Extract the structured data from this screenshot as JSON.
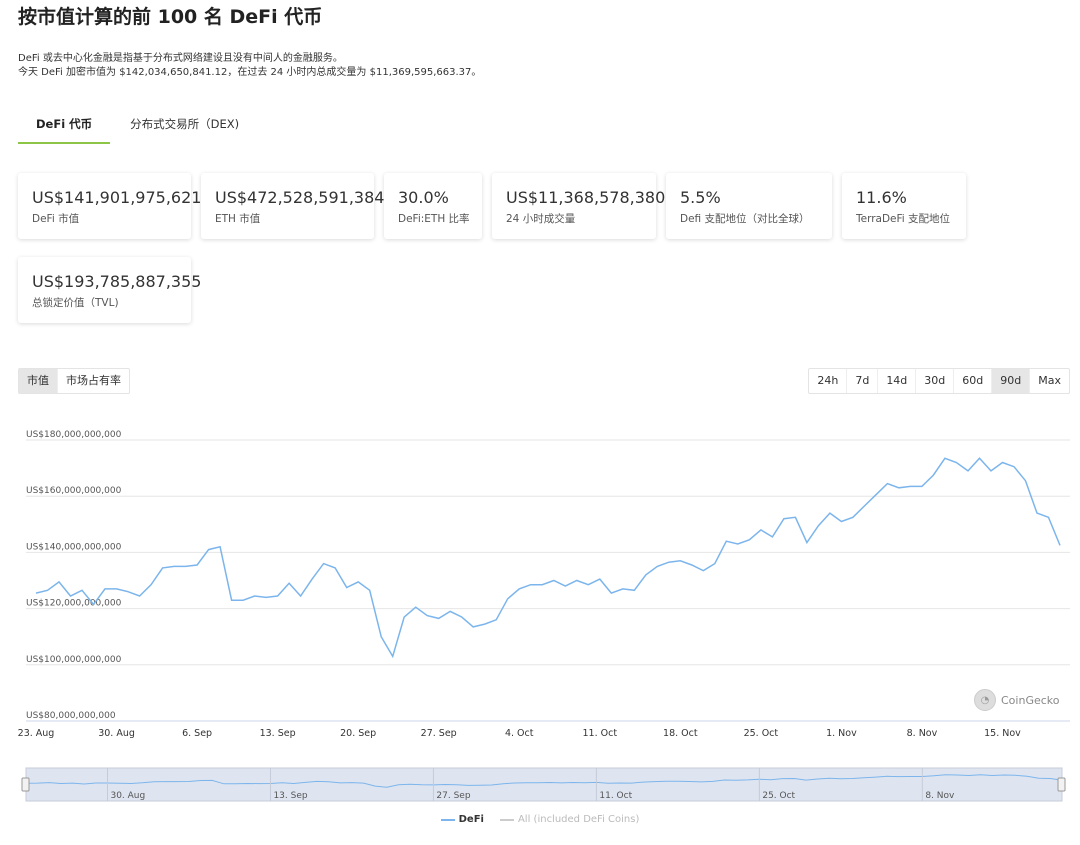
{
  "page": {
    "title": "按市值计算的前 100 名 DeFi 代币",
    "desc_line1": "DeFi 或去中心化金融是指基于分布式网络建设且没有中间人的金融服务。",
    "desc_line2": "今天 DeFi 加密市值为 $142,034,650,841.12，在过去 24 小时内总成交量为 $11,369,595,663.37。"
  },
  "tabs": [
    {
      "label": "DeFi 代币",
      "active": true
    },
    {
      "label": "分布式交易所（DEX)",
      "active": false
    }
  ],
  "stats": [
    {
      "value": "US$141,901,975,621",
      "label": "DeFi 市值"
    },
    {
      "value": "US$472,528,591,384",
      "label": "ETH 市值"
    },
    {
      "value": "30.0%",
      "label": "DeFi:ETH 比率"
    },
    {
      "value": "US$11,368,578,380",
      "label": "24 小时成交量"
    },
    {
      "value": "5.5%",
      "label": "Defi 支配地位（对比全球）"
    },
    {
      "value": "11.6%",
      "label": "TerraDeFi 支配地位"
    },
    {
      "value": "US$193,785,887,355",
      "label": "总锁定价值（TVL)"
    }
  ],
  "chart_tabs": [
    {
      "label": "市值",
      "selected": true
    },
    {
      "label": "市场占有率",
      "selected": false
    }
  ],
  "ranges": [
    {
      "label": "24h",
      "selected": false
    },
    {
      "label": "7d",
      "selected": false
    },
    {
      "label": "14d",
      "selected": false
    },
    {
      "label": "30d",
      "selected": false
    },
    {
      "label": "60d",
      "selected": false
    },
    {
      "label": "90d",
      "selected": true
    },
    {
      "label": "Max",
      "selected": false
    }
  ],
  "watermark": "CoinGecko",
  "colors": {
    "accent": "#8dc647",
    "line": "#7cb5ec",
    "nav_fill": "#dfe5f0"
  },
  "chart_data": {
    "type": "line",
    "ylim": [
      80000000000,
      180000000000
    ],
    "yticks": [
      80000000000,
      100000000000,
      120000000000,
      140000000000,
      160000000000,
      180000000000
    ],
    "ytick_labels": [
      "US$80,000,000,000",
      "US$100,000,000,000",
      "US$120,000,000,000",
      "US$140,000,000,000",
      "US$160,000,000,000",
      "US$180,000,000,000"
    ],
    "xlim": [
      0,
      89
    ],
    "xticks": [
      {
        "day": 0,
        "label": "23. Aug"
      },
      {
        "day": 7,
        "label": "30. Aug"
      },
      {
        "day": 14,
        "label": "6. Sep"
      },
      {
        "day": 21,
        "label": "13. Sep"
      },
      {
        "day": 28,
        "label": "20. Sep"
      },
      {
        "day": 35,
        "label": "27. Sep"
      },
      {
        "day": 42,
        "label": "4. Oct"
      },
      {
        "day": 49,
        "label": "11. Oct"
      },
      {
        "day": 56,
        "label": "18. Oct"
      },
      {
        "day": 63,
        "label": "25. Oct"
      },
      {
        "day": 70,
        "label": "1. Nov"
      },
      {
        "day": 77,
        "label": "8. Nov"
      },
      {
        "day": 84,
        "label": "15. Nov"
      }
    ],
    "navigator_labels": [
      {
        "day": 7,
        "label": "30. Aug"
      },
      {
        "day": 21,
        "label": "13. Sep"
      },
      {
        "day": 35,
        "label": "27. Sep"
      },
      {
        "day": 49,
        "label": "11. Oct"
      },
      {
        "day": 63,
        "label": "25. Oct"
      },
      {
        "day": 77,
        "label": "8. Nov"
      }
    ],
    "series": [
      {
        "name": "DeFi",
        "values": [
          125.5,
          126.5,
          129.5,
          124.5,
          126.5,
          121.5,
          127,
          127,
          126,
          124.5,
          128.5,
          134.5,
          135,
          135,
          135.5,
          141,
          142,
          123,
          123,
          124.5,
          124,
          124.5,
          129,
          124.5,
          130.5,
          136,
          134.5,
          127.5,
          129.5,
          126.5,
          110,
          103,
          117,
          120.5,
          117.5,
          116.5,
          119,
          117,
          113.5,
          114.5,
          116,
          123.5,
          127,
          128.5,
          128.5,
          130,
          128,
          130,
          128.5,
          130.5,
          125.5,
          127,
          126.5,
          132,
          135,
          136.5,
          137,
          135.5,
          133.5,
          136,
          144,
          143,
          144.5,
          148,
          145.5,
          152,
          152.5,
          143.5,
          149.5,
          154,
          151,
          152.5,
          156.5,
          160.5,
          164.5,
          163,
          163.5,
          163.5,
          167.5,
          173.5,
          172,
          169,
          173.5,
          169,
          172,
          170.5,
          165.5,
          154,
          152.5,
          142.5
        ]
      },
      {
        "name": "All (included DeFi Coins)",
        "values": []
      }
    ]
  }
}
